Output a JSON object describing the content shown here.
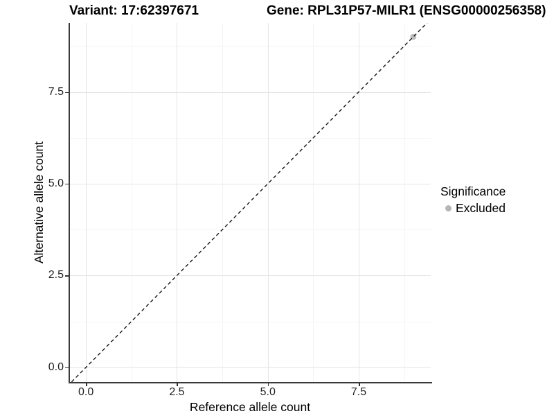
{
  "titles": {
    "variant": "Variant: 17:62397671",
    "gene": "Gene: RPL31P57-MILR1 (ENSG00000256358)"
  },
  "chart_data": {
    "type": "scatter",
    "xlabel": "Reference allele count",
    "ylabel": "Alternative allele count",
    "xlim": [
      -0.46,
      9.48
    ],
    "ylim": [
      -0.4,
      9.38
    ],
    "x_ticks": {
      "values": [
        0,
        2.5,
        5,
        7.5
      ],
      "labels": [
        "0.0",
        "2.5",
        "5.0",
        "7.5"
      ]
    },
    "y_ticks": {
      "values": [
        0,
        2.5,
        5,
        7.5
      ],
      "labels": [
        "0.0",
        "2.5",
        "5.0",
        "7.5"
      ]
    },
    "minor_ticks": [
      1.25,
      3.75,
      6.25,
      8.75
    ],
    "grid": "major+minor",
    "identity_line": {
      "style": "dashed",
      "color": "#151515",
      "span": [
        -1,
        11
      ]
    },
    "series": [
      {
        "name": "Excluded",
        "color": "#bebebe",
        "points": [
          {
            "x": 9,
            "y": 9
          }
        ]
      }
    ],
    "legend": {
      "title": "Significance",
      "position": "right",
      "entries": [
        {
          "label": "Excluded",
          "color": "#b5b5b5"
        }
      ]
    }
  },
  "colors": {
    "grid_major": "#e4e4e4",
    "grid_minor": "#f4f4f4",
    "axis_line": "#3a3a3a",
    "tick_mark": "#333333",
    "tick_text": "#1f1f1f"
  }
}
